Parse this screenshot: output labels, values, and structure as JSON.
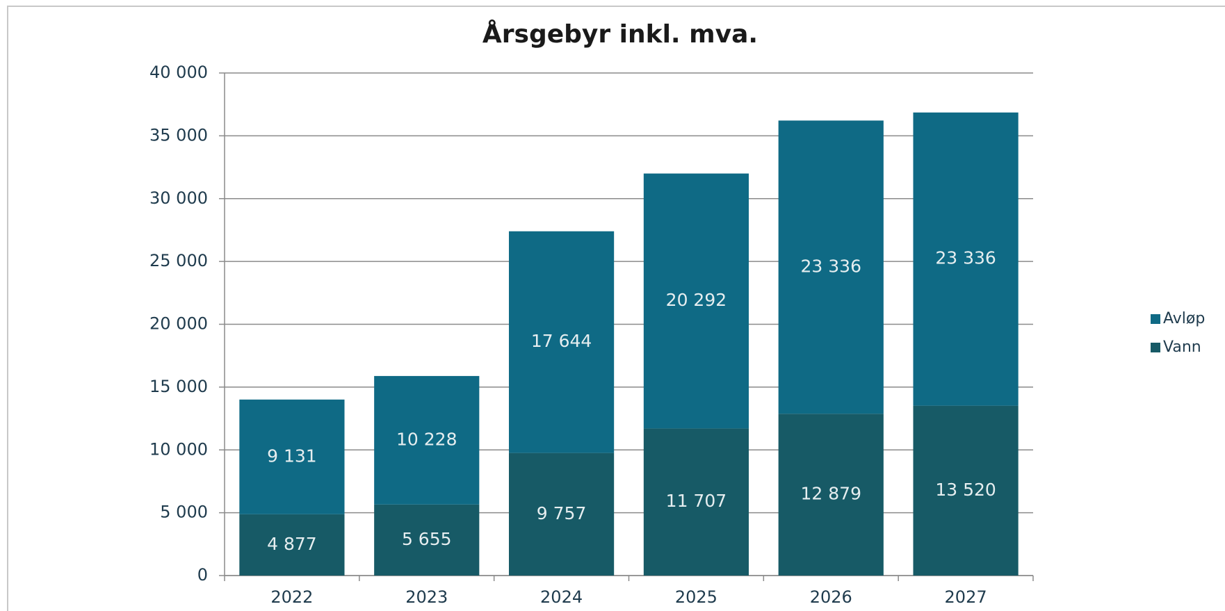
{
  "chart_data": {
    "type": "stacked_bar",
    "title": "Årsgebyr inkl. mva.",
    "categories": [
      "2022",
      "2023",
      "2024",
      "2025",
      "2026",
      "2027"
    ],
    "series": [
      {
        "name": "Vann",
        "color": "#175a66",
        "values": [
          4877,
          5655,
          9757,
          11707,
          12879,
          13520
        ],
        "value_labels": [
          "4 877",
          "5 655",
          "9 757",
          "11 707",
          "12 879",
          "13 520"
        ]
      },
      {
        "name": "Avløp",
        "color": "#0f6a85",
        "values": [
          9131,
          10228,
          17644,
          20292,
          23336,
          23336
        ],
        "value_labels": [
          "9 131",
          "10 228",
          "17 644",
          "20 292",
          "23 336",
          "23 336"
        ]
      }
    ],
    "ylim": [
      0,
      40000
    ],
    "yticks": [
      0,
      {
        "value": 5000,
        "label": "5 000"
      },
      {
        "value": 10000,
        "label": "10 000"
      },
      {
        "value": 15000,
        "label": "15 000"
      },
      {
        "value": 20000,
        "label": "20 000"
      },
      {
        "value": 25000,
        "label": "25 000"
      },
      {
        "value": 30000,
        "label": "30 000"
      },
      {
        "value": 35000,
        "label": "35 000"
      },
      {
        "value": 40000,
        "label": "40 000"
      }
    ],
    "grid": true,
    "legend": "right"
  }
}
